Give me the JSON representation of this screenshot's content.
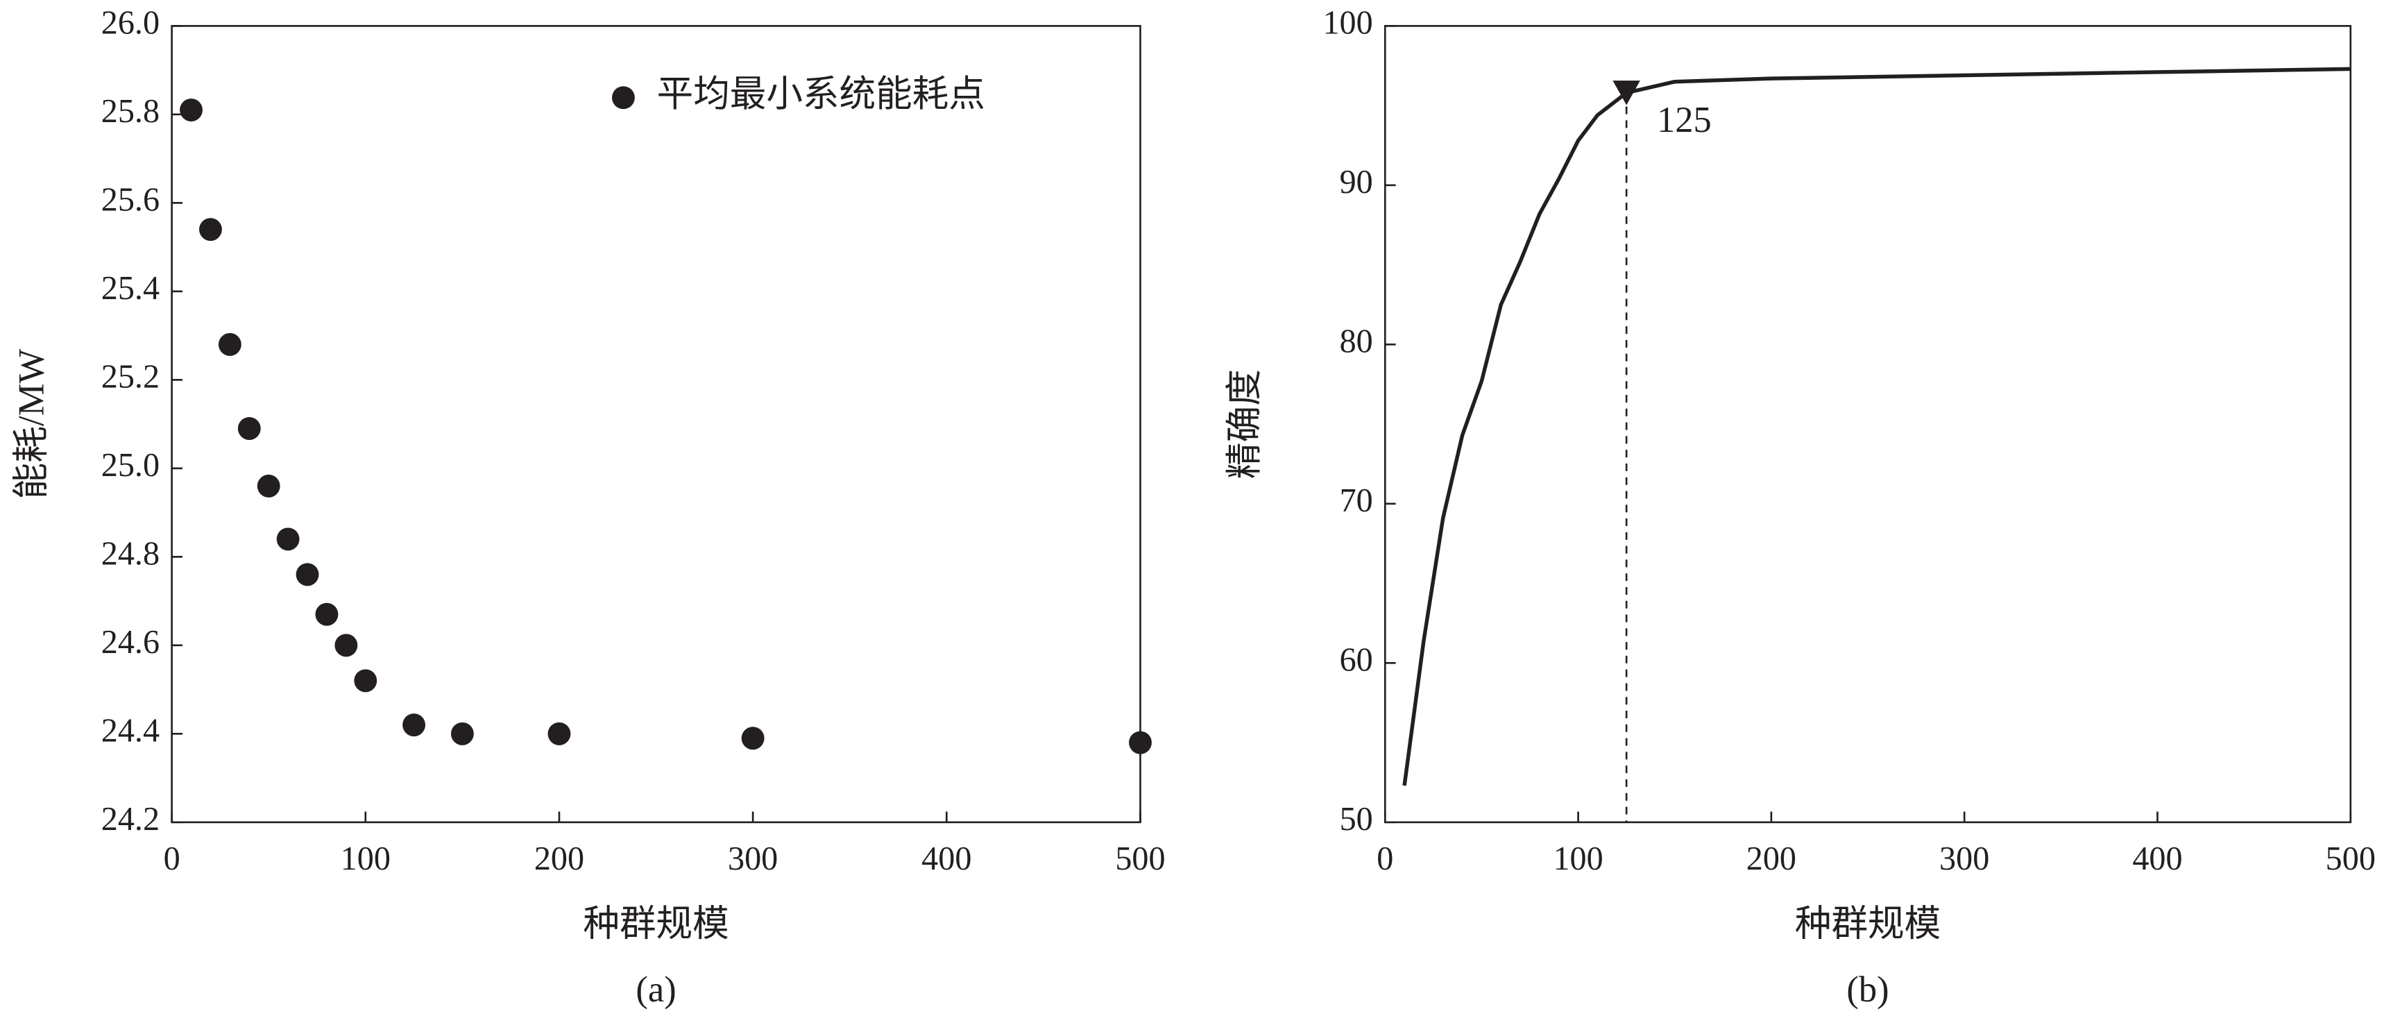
{
  "chart_data": [
    {
      "type": "scatter",
      "xlabel": "种群规模",
      "ylabel": "能耗/MW",
      "caption": "(a)",
      "x": [
        10,
        20,
        30,
        40,
        50,
        60,
        70,
        80,
        90,
        100,
        125,
        150,
        200,
        300,
        500
      ],
      "series": [
        {
          "name": "平均最小系统能耗点",
          "color": "#231f20",
          "values": [
            25.81,
            25.54,
            25.28,
            25.09,
            24.96,
            24.84,
            24.76,
            24.67,
            24.6,
            24.52,
            24.42,
            24.4,
            24.4,
            24.39,
            24.38
          ]
        }
      ],
      "xlim": [
        0,
        500
      ],
      "xticks": [
        0,
        100,
        200,
        300,
        400,
        500
      ],
      "ylim": [
        24.2,
        26
      ],
      "yticks": [
        {
          "value": 24.2,
          "label": "24.2"
        },
        24.4,
        24.6,
        24.8,
        {
          "value": 25,
          "label": "25.0"
        },
        25.2,
        25.4,
        25.6,
        25.8,
        {
          "value": 26,
          "label": "26.0"
        }
      ],
      "legend": "upper right"
    },
    {
      "type": "line",
      "xlabel": "种群规模",
      "ylabel": "精确度",
      "caption": "(b)",
      "x": [
        10,
        20,
        30,
        40,
        50,
        60,
        70,
        80,
        90,
        100,
        110,
        125,
        150,
        200,
        300,
        400,
        500
      ],
      "series": [
        {
          "color": "#231f20",
          "values": [
            52.3,
            61.4,
            69.1,
            74.3,
            77.7,
            82.5,
            85.2,
            88.2,
            90.4,
            92.8,
            94.4,
            95.8,
            96.5,
            96.7,
            96.9,
            97.1,
            97.3
          ]
        }
      ],
      "annotation": {
        "x": 125,
        "y": 95.8
      },
      "xlim": [
        0,
        500
      ],
      "xticks": [
        0,
        100,
        200,
        300,
        400,
        500
      ],
      "ylim": [
        50,
        100
      ],
      "yticks": [
        50,
        60,
        70,
        80,
        90,
        100
      ]
    }
  ]
}
